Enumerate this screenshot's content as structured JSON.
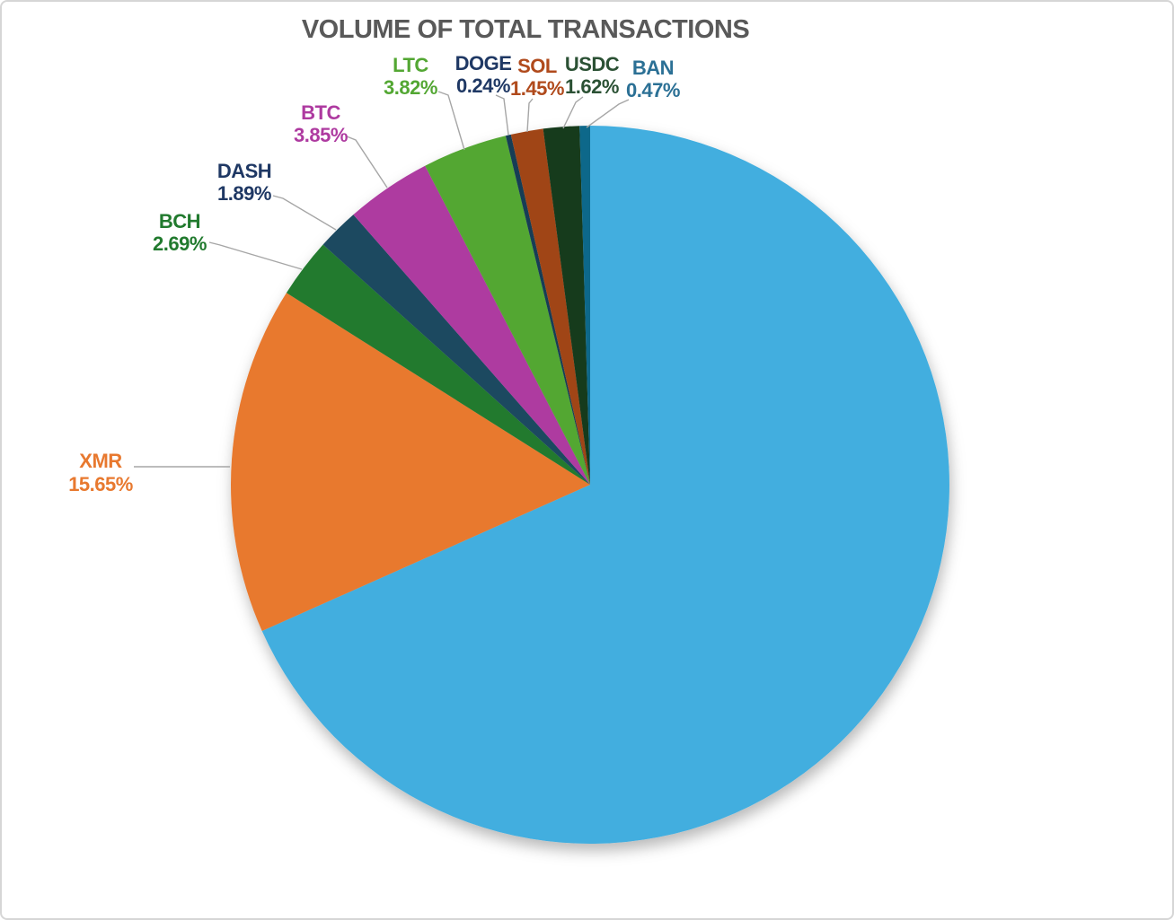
{
  "chart_data": {
    "type": "pie",
    "title": "VOLUME OF TOTAL TRANSACTIONS",
    "title_color": "#595959",
    "unit": "%",
    "legend_position": "none",
    "label_style": "outside-callout",
    "start_angle_deg": 0,
    "direction": "clockwise",
    "leader_line_color": "#a6a6a6",
    "slices": [
      {
        "label": "",
        "value": 68.32,
        "display": "",
        "color": "#42aedf",
        "label_color": ""
      },
      {
        "label": "XMR",
        "value": 15.65,
        "display": "15.65%",
        "color": "#e8792f",
        "label_color": "#e8792f"
      },
      {
        "label": "BCH",
        "value": 2.69,
        "display": "2.69%",
        "color": "#217a2e",
        "label_color": "#217a2e"
      },
      {
        "label": "DASH",
        "value": 1.89,
        "display": "1.89%",
        "color": "#1d4a61",
        "label_color": "#1f3864"
      },
      {
        "label": "BTC",
        "value": 3.85,
        "display": "3.85%",
        "color": "#ae3aa0",
        "label_color": "#ae3aa0"
      },
      {
        "label": "LTC",
        "value": 3.82,
        "display": "3.82%",
        "color": "#53a733",
        "label_color": "#53a733"
      },
      {
        "label": "DOGE",
        "value": 0.24,
        "display": "0.24%",
        "color": "#183c55",
        "label_color": "#1f3864"
      },
      {
        "label": "SOL",
        "value": 1.45,
        "display": "1.45%",
        "color": "#a04515",
        "label_color": "#b04a1c"
      },
      {
        "label": "USDC",
        "value": 1.62,
        "display": "1.62%",
        "color": "#173a1c",
        "label_color": "#2b5134"
      },
      {
        "label": "BAN",
        "value": 0.47,
        "display": "0.47%",
        "color": "#11688a",
        "label_color": "#2b7095"
      }
    ]
  }
}
